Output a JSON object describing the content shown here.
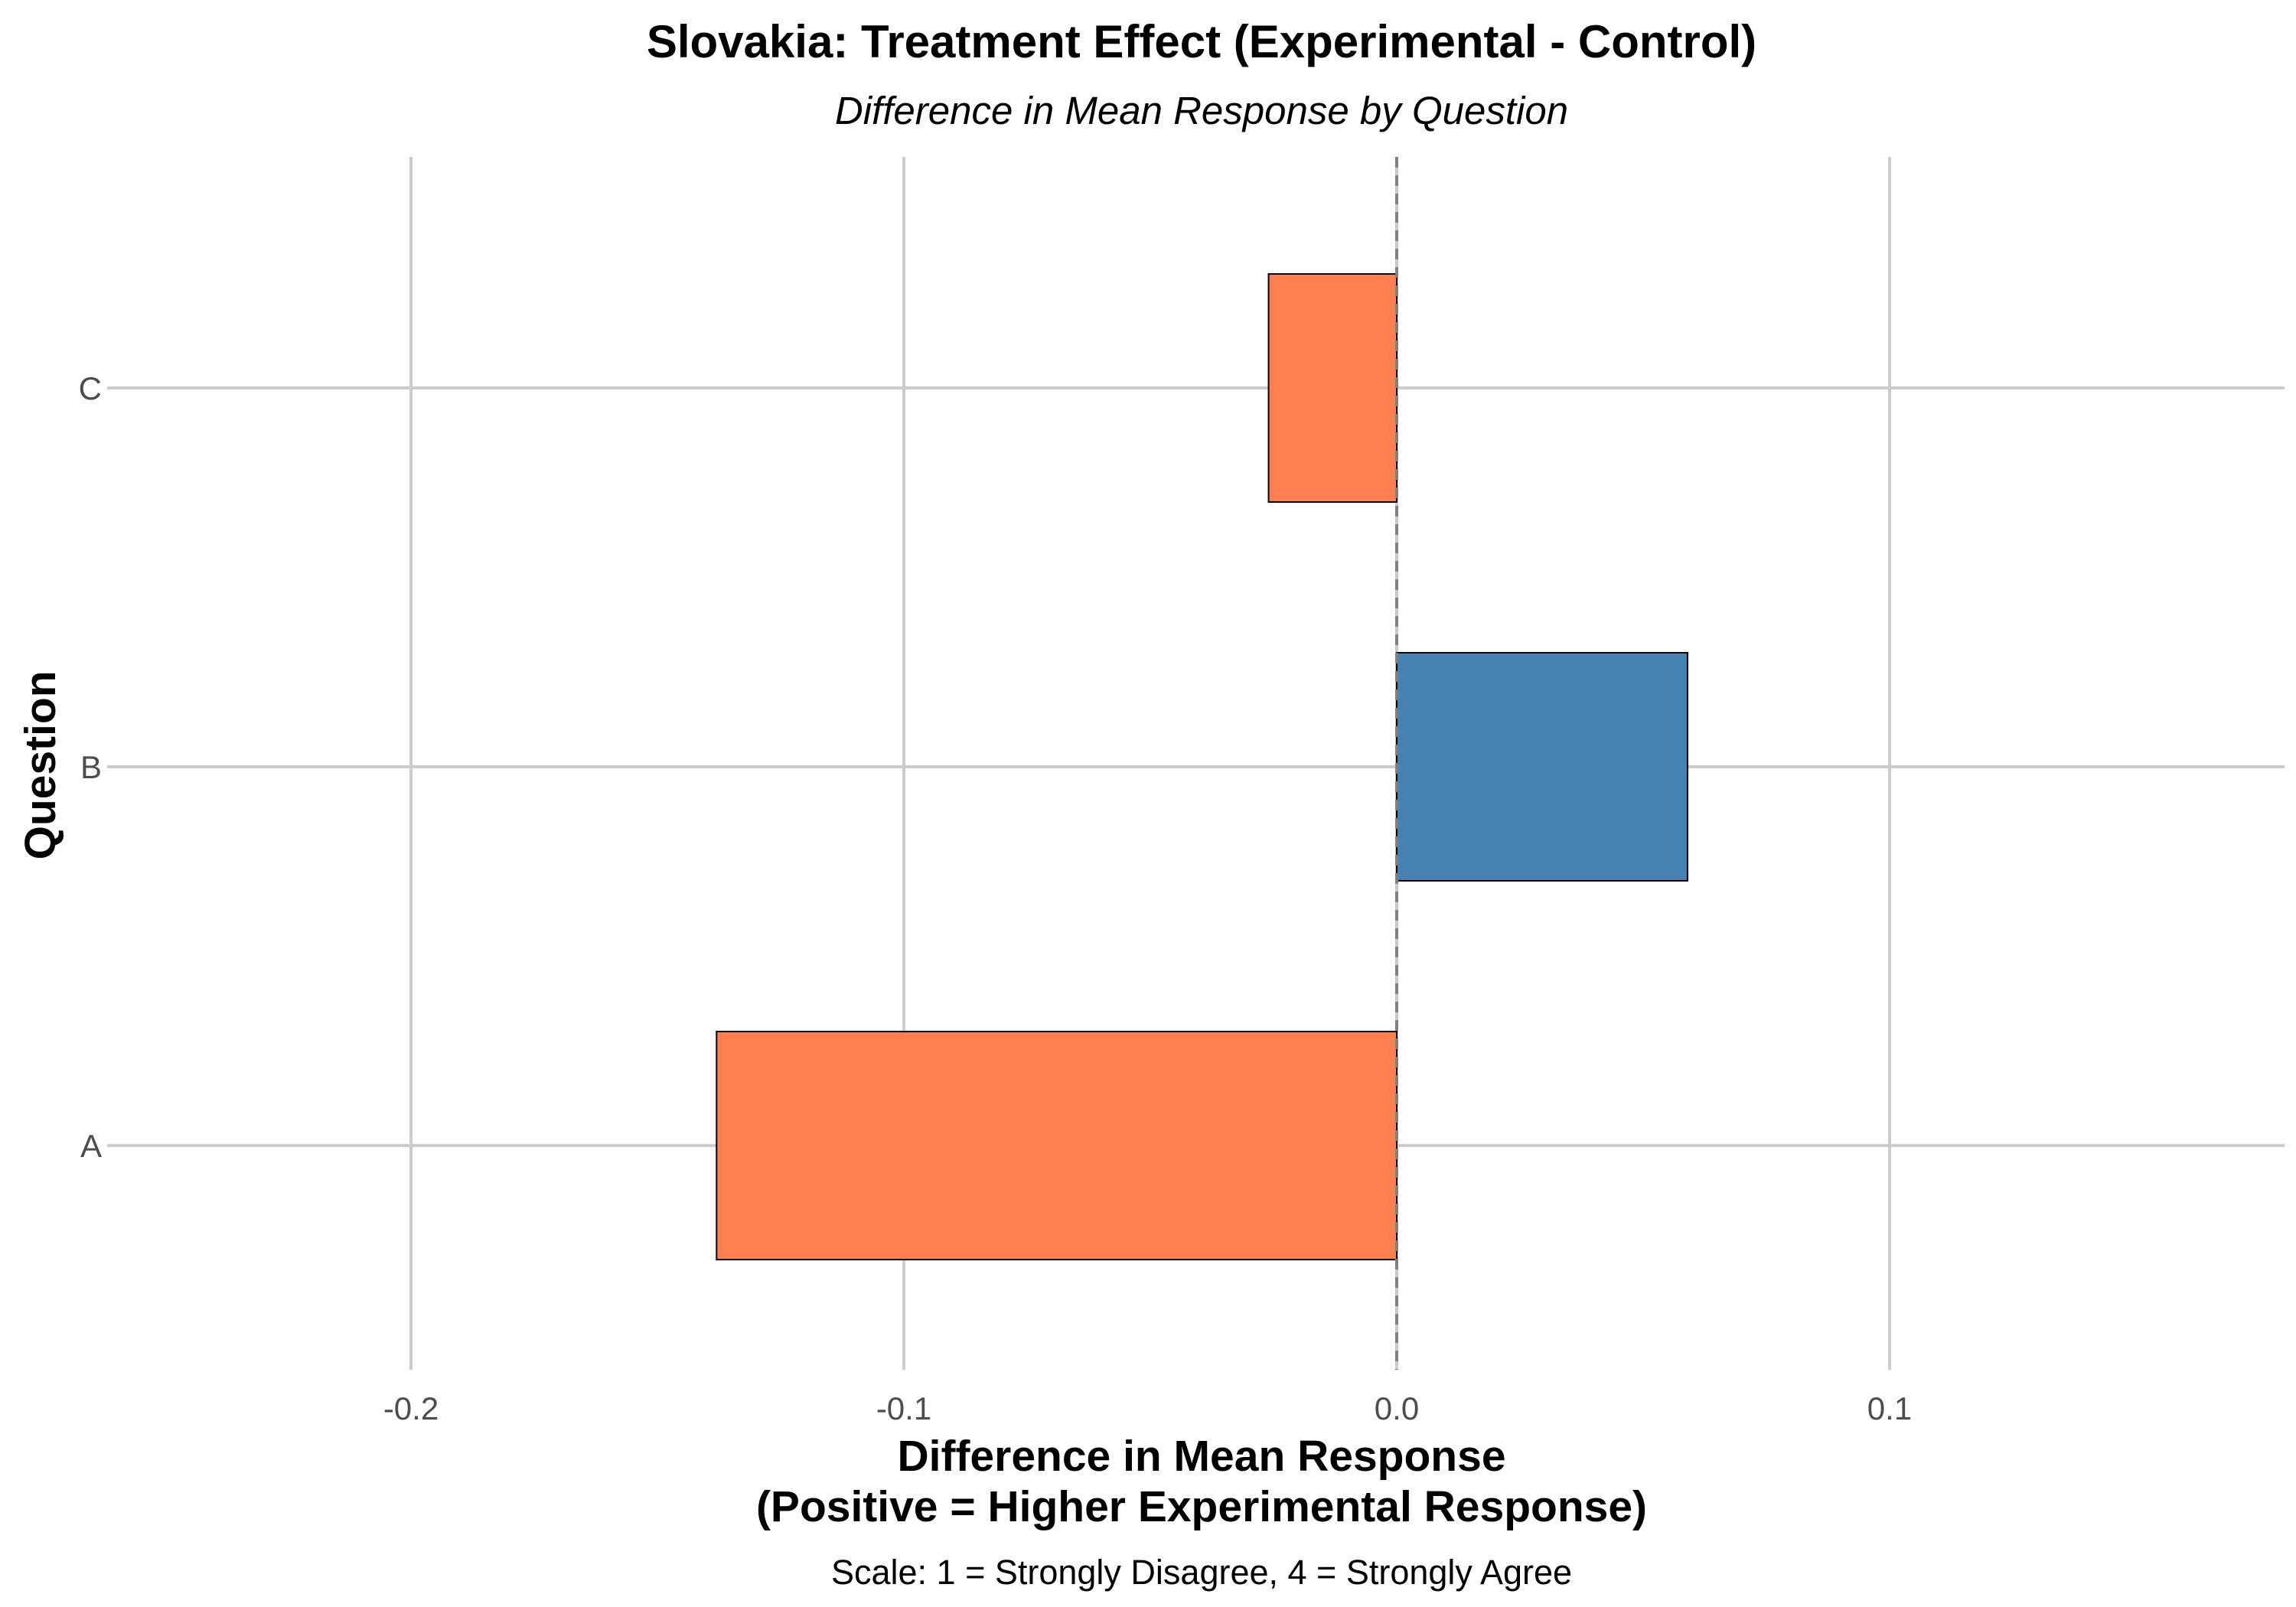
{
  "chart_data": {
    "type": "bar",
    "orientation": "horizontal",
    "title": "Slovakia: Treatment Effect (Experimental - Control)",
    "subtitle": "Difference in Mean Response by Question",
    "xlabel_line1": "Difference in Mean Response",
    "xlabel_line2": "(Positive = Higher Experimental Response)",
    "ylabel": "Question",
    "caption": "Scale: 1 = Strongly Disagree, 4 = Strongly Agree",
    "categories": [
      "A",
      "B",
      "C"
    ],
    "values": [
      -0.138,
      0.059,
      -0.026
    ],
    "xlim": [
      -0.2,
      0.18
    ],
    "xticks": [
      -0.2,
      -0.1,
      0.0,
      0.1
    ],
    "xtick_labels": [
      "-0.2",
      "-0.1",
      "0.0",
      "0.1"
    ],
    "grid": true,
    "reference_line": 0.0,
    "colors": {
      "positive": "#4682B4",
      "negative": "#FF7F50",
      "bar_outline": "#000000",
      "reference_line": "#808080"
    }
  }
}
